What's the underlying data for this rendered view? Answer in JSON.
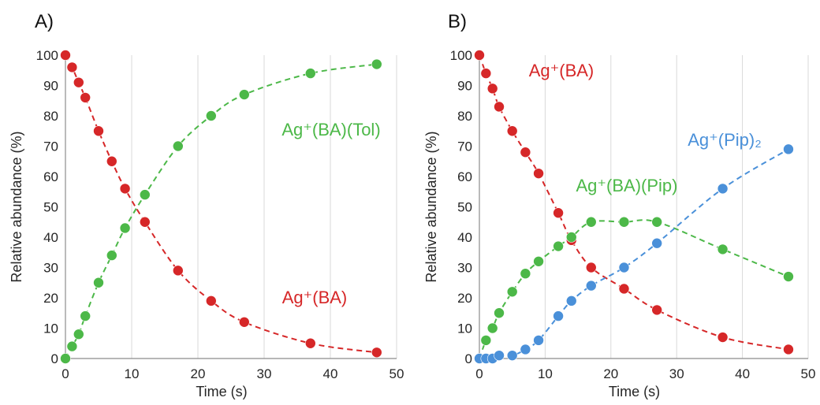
{
  "chart_data": [
    {
      "panel_label": "A)",
      "type": "scatter",
      "title": "",
      "xlabel": "Time (s)",
      "ylabel": "Relative abundance (%)",
      "xlim": [
        0,
        50
      ],
      "ylim": [
        0,
        100
      ],
      "x_ticks": [
        "0",
        "10",
        "20",
        "30",
        "40",
        "50"
      ],
      "y_ticks": [
        "0",
        "10",
        "20",
        "30",
        "40",
        "50",
        "60",
        "70",
        "80",
        "90",
        "100"
      ],
      "grid": "vertical",
      "series": [
        {
          "name": "Ag⁺(BA)",
          "color": "#d62728",
          "fit": "dashed",
          "x": [
            0,
            1,
            2,
            3,
            5,
            7,
            9,
            12,
            17,
            22,
            27,
            37,
            47
          ],
          "y": [
            100,
            96,
            91,
            86,
            75,
            65,
            56,
            45,
            29,
            19,
            12,
            5,
            2
          ]
        },
        {
          "name": "Ag⁺(BA)(Tol)",
          "color": "#4cb848",
          "fit": "dashed",
          "x": [
            0,
            1,
            2,
            3,
            5,
            7,
            9,
            12,
            17,
            22,
            27,
            37,
            47
          ],
          "y": [
            0,
            4,
            8,
            14,
            25,
            34,
            43,
            54,
            70,
            80,
            87,
            94,
            97
          ]
        }
      ],
      "annotations": [
        {
          "text": "Ag⁺(BA)(Tol)",
          "series": "Ag⁺(BA)(Tol)"
        },
        {
          "text": "Ag⁺(BA)",
          "series": "Ag⁺(BA)"
        }
      ]
    },
    {
      "panel_label": "B)",
      "type": "scatter",
      "title": "",
      "xlabel": "Time (s)",
      "ylabel": "Relative abundance (%)",
      "xlim": [
        0,
        50
      ],
      "ylim": [
        0,
        100
      ],
      "x_ticks": [
        "0",
        "10",
        "20",
        "30",
        "40",
        "50"
      ],
      "y_ticks": [
        "0",
        "10",
        "20",
        "30",
        "40",
        "50",
        "60",
        "70",
        "80",
        "90",
        "100"
      ],
      "grid": "vertical",
      "series": [
        {
          "name": "Ag⁺(BA)",
          "color": "#d62728",
          "fit": "dashed",
          "x": [
            0,
            1,
            2,
            3,
            5,
            7,
            9,
            12,
            14,
            17,
            22,
            27,
            37,
            47
          ],
          "y": [
            100,
            94,
            89,
            83,
            75,
            68,
            61,
            48,
            39,
            30,
            23,
            16,
            7,
            3
          ]
        },
        {
          "name": "Ag⁺(BA)(Pip)",
          "color": "#4cb848",
          "fit": "dashed",
          "x": [
            0,
            1,
            2,
            3,
            5,
            7,
            9,
            12,
            14,
            17,
            22,
            27,
            37,
            47
          ],
          "y": [
            0,
            6,
            10,
            15,
            22,
            28,
            32,
            37,
            40,
            45,
            45,
            45,
            36,
            27
          ]
        },
        {
          "name": "Ag⁺(Pip)₂",
          "color": "#4a90d9",
          "fit": "dashed",
          "x": [
            0,
            1,
            2,
            3,
            5,
            7,
            9,
            12,
            14,
            17,
            22,
            27,
            37,
            47
          ],
          "y": [
            0,
            0,
            0,
            1,
            1,
            3,
            6,
            14,
            19,
            24,
            30,
            38,
            56,
            69
          ]
        }
      ],
      "annotations": [
        {
          "text": "Ag⁺(BA)",
          "series": "Ag⁺(BA)"
        },
        {
          "text": "Ag⁺(Pip)₂",
          "series": "Ag⁺(Pip)₂"
        },
        {
          "text": "Ag⁺(BA)(Pip)",
          "series": "Ag⁺(BA)(Pip)"
        }
      ]
    }
  ]
}
